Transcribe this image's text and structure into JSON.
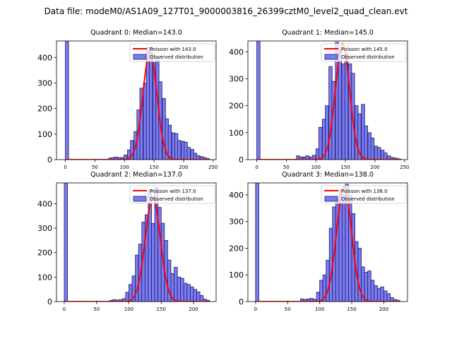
{
  "figure_title": "Data file: modeM0/AS1A09_127T01_9000003816_26399cztM0_level2_quad_clean.evt",
  "colors": {
    "bar_fill": "#7b7bf0",
    "bar_edge": "#1a1a6a",
    "poisson_line": "#ff0000"
  },
  "chart_data": [
    {
      "type": "bar",
      "title": "Quadrant 0: Median=143.0",
      "legend": {
        "position": "top-right",
        "line_label": "Poisson with 143.0",
        "bar_label": "Observed distribution"
      },
      "xlim": [
        -15,
        255
      ],
      "ylim": [
        0,
        465
      ],
      "xticks": [
        0,
        50,
        100,
        150,
        200,
        250
      ],
      "yticks": [
        0,
        100,
        200,
        300,
        400
      ],
      "bin_width": 5.4,
      "bins": [
        [
          0,
          465
        ],
        [
          73,
          6
        ],
        [
          78,
          8
        ],
        [
          83,
          10
        ],
        [
          89,
          8
        ],
        [
          94,
          8
        ],
        [
          99,
          18
        ],
        [
          105,
          38
        ],
        [
          110,
          75
        ],
        [
          116,
          110
        ],
        [
          121,
          195
        ],
        [
          126,
          280
        ],
        [
          132,
          300
        ],
        [
          137,
          440
        ],
        [
          142,
          440
        ],
        [
          148,
          380
        ],
        [
          153,
          400
        ],
        [
          158,
          305
        ],
        [
          164,
          240
        ],
        [
          169,
          160
        ],
        [
          174,
          135
        ],
        [
          180,
          105
        ],
        [
          185,
          102
        ],
        [
          190,
          75
        ],
        [
          196,
          72
        ],
        [
          201,
          68
        ],
        [
          206,
          48
        ],
        [
          212,
          40
        ],
        [
          217,
          25
        ],
        [
          222,
          16
        ],
        [
          228,
          12
        ],
        [
          233,
          8
        ],
        [
          238,
          4
        ]
      ],
      "poisson_mean": 143.0,
      "poisson_peak": 420,
      "poisson_range": [
        0,
        245
      ]
    },
    {
      "type": "bar",
      "title": "Quadrant 1: Median=145.0",
      "legend": {
        "position": "top-right",
        "line_label": "Poisson with 145.0",
        "bar_label": "Observed distribution"
      },
      "xlim": [
        -15,
        255
      ],
      "ylim": [
        0,
        440
      ],
      "xticks": [
        0,
        50,
        100,
        150,
        200,
        250
      ],
      "yticks": [
        0,
        100,
        200,
        300,
        400
      ],
      "bin_width": 5.5,
      "bins": [
        [
          0,
          440
        ],
        [
          67,
          14
        ],
        [
          72,
          10
        ],
        [
          78,
          10
        ],
        [
          83,
          14
        ],
        [
          89,
          10
        ],
        [
          94,
          16
        ],
        [
          100,
          40
        ],
        [
          105,
          120
        ],
        [
          111,
          150
        ],
        [
          116,
          200
        ],
        [
          122,
          345
        ],
        [
          127,
          290
        ],
        [
          133,
          435
        ],
        [
          138,
          410
        ],
        [
          144,
          355
        ],
        [
          149,
          395
        ],
        [
          155,
          355
        ],
        [
          160,
          320
        ],
        [
          166,
          200
        ],
        [
          171,
          170
        ],
        [
          177,
          205
        ],
        [
          182,
          125
        ],
        [
          188,
          100
        ],
        [
          193,
          80
        ],
        [
          199,
          50
        ],
        [
          204,
          45
        ],
        [
          210,
          35
        ],
        [
          215,
          25
        ],
        [
          221,
          14
        ],
        [
          226,
          8
        ],
        [
          232,
          6
        ],
        [
          237,
          3
        ]
      ],
      "poisson_mean": 145.0,
      "poisson_peak": 430,
      "poisson_range": [
        0,
        245
      ]
    },
    {
      "type": "bar",
      "title": "Quadrant 2: Median=137.0",
      "legend": {
        "position": "top-right",
        "line_label": "Poisson with 137.0",
        "bar_label": "Observed distribution"
      },
      "xlim": [
        -12,
        235
      ],
      "ylim": [
        0,
        485
      ],
      "xticks": [
        0,
        50,
        100,
        150,
        200
      ],
      "yticks": [
        0,
        100,
        200,
        300,
        400
      ],
      "bin_width": 5.0,
      "bins": [
        [
          0,
          485
        ],
        [
          70,
          5
        ],
        [
          75,
          8
        ],
        [
          80,
          6
        ],
        [
          85,
          8
        ],
        [
          90,
          12
        ],
        [
          95,
          38
        ],
        [
          100,
          70
        ],
        [
          105,
          105
        ],
        [
          110,
          190
        ],
        [
          115,
          235
        ],
        [
          120,
          325
        ],
        [
          125,
          355
        ],
        [
          130,
          455
        ],
        [
          135,
          320
        ],
        [
          140,
          465
        ],
        [
          145,
          385
        ],
        [
          150,
          320
        ],
        [
          155,
          250
        ],
        [
          160,
          170
        ],
        [
          165,
          115
        ],
        [
          170,
          140
        ],
        [
          175,
          100
        ],
        [
          180,
          95
        ],
        [
          185,
          75
        ],
        [
          190,
          70
        ],
        [
          195,
          60
        ],
        [
          200,
          50
        ],
        [
          205,
          40
        ],
        [
          210,
          25
        ],
        [
          215,
          10
        ],
        [
          220,
          5
        ]
      ],
      "poisson_mean": 137.0,
      "poisson_peak": 425,
      "poisson_range": [
        0,
        225
      ]
    },
    {
      "type": "bar",
      "title": "Quadrant 3: Median=138.0",
      "legend": {
        "position": "top-right",
        "line_label": "Poisson with 138.0",
        "bar_label": "Observed distribution"
      },
      "xlim": [
        -12,
        237
      ],
      "ylim": [
        0,
        445
      ],
      "xticks": [
        0,
        50,
        100,
        150,
        200
      ],
      "yticks": [
        0,
        100,
        200,
        300,
        400
      ],
      "bin_width": 5.0,
      "bins": [
        [
          0,
          445
        ],
        [
          70,
          10
        ],
        [
          75,
          8
        ],
        [
          80,
          10
        ],
        [
          85,
          12
        ],
        [
          90,
          8
        ],
        [
          95,
          35
        ],
        [
          100,
          80
        ],
        [
          105,
          100
        ],
        [
          110,
          155
        ],
        [
          115,
          275
        ],
        [
          120,
          355
        ],
        [
          125,
          380
        ],
        [
          130,
          420
        ],
        [
          135,
          400
        ],
        [
          140,
          440
        ],
        [
          145,
          400
        ],
        [
          150,
          330
        ],
        [
          155,
          225
        ],
        [
          160,
          200
        ],
        [
          165,
          130
        ],
        [
          170,
          110
        ],
        [
          175,
          115
        ],
        [
          180,
          80
        ],
        [
          185,
          60
        ],
        [
          190,
          50
        ],
        [
          195,
          55
        ],
        [
          200,
          40
        ],
        [
          205,
          30
        ],
        [
          210,
          15
        ],
        [
          215,
          8
        ],
        [
          220,
          5
        ]
      ],
      "poisson_mean": 138.0,
      "poisson_peak": 430,
      "poisson_range": [
        0,
        225
      ]
    }
  ]
}
